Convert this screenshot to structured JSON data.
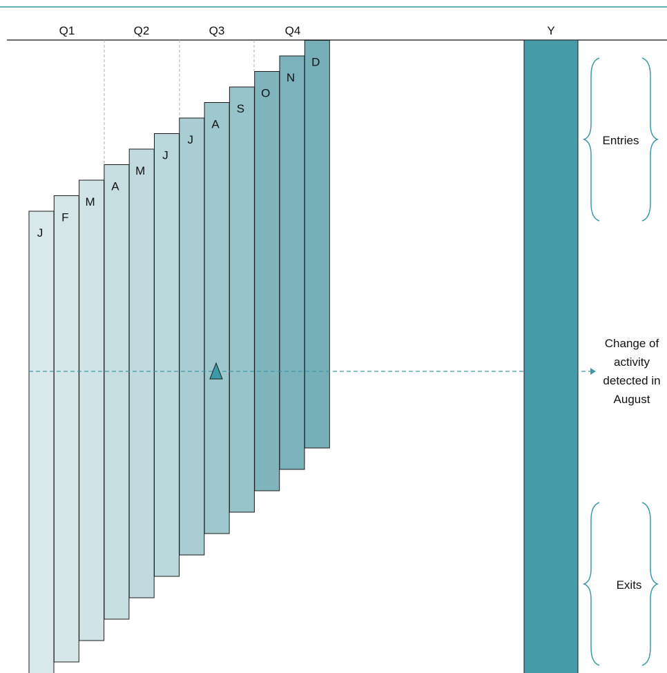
{
  "quarters": [
    "Q1",
    "Q2",
    "Q3",
    "Q4"
  ],
  "year_label": "Y",
  "months": [
    {
      "label": "J",
      "color": "#d9e8eb"
    },
    {
      "label": "F",
      "color": "#d5e6e9"
    },
    {
      "label": "M",
      "color": "#d0e3e6"
    },
    {
      "label": "A",
      "color": "#c6dde1"
    },
    {
      "label": "M",
      "color": "#c0dadf"
    },
    {
      "label": "J",
      "color": "#bad7dc"
    },
    {
      "label": "J",
      "color": "#a9cdd3"
    },
    {
      "label": "A",
      "color": "#9ec7ce"
    },
    {
      "label": "S",
      "color": "#97c3ca"
    },
    {
      "label": "O",
      "color": "#81b5be"
    },
    {
      "label": "N",
      "color": "#7bb2bb"
    },
    {
      "label": "D",
      "color": "#76afb8"
    }
  ],
  "year_bar_color": "#469ca8",
  "accent_color": "#3b9aa6",
  "entries_label": "Entries",
  "exits_label": "Exits",
  "change_label_lines": [
    "Change of",
    "activity",
    "detected in",
    "August"
  ]
}
